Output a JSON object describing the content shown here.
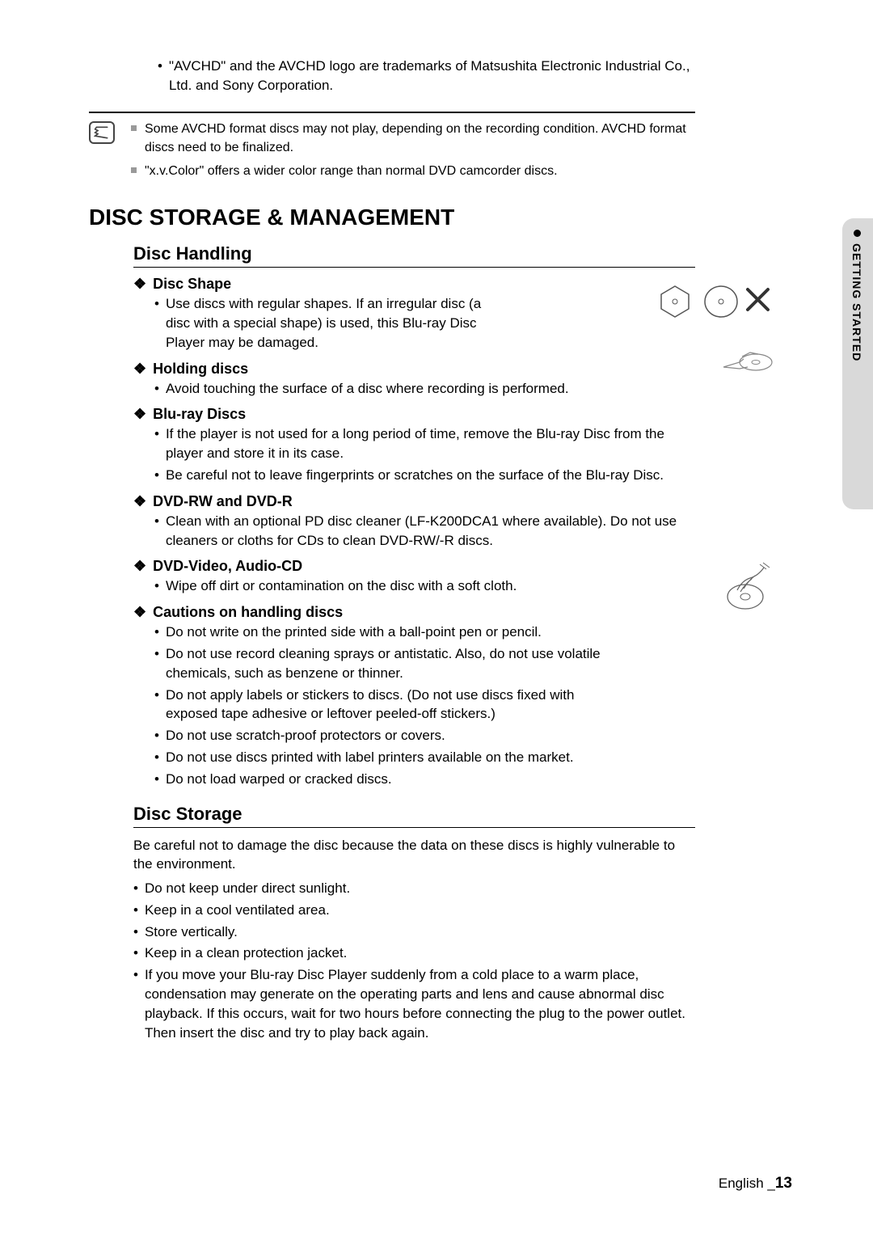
{
  "top_bullet": "\"AVCHD\" and the AVCHD logo are trademarks of Matsushita Electronic Industrial Co., Ltd. and Sony Corporation.",
  "notes": [
    "Some AVCHD format discs may not play, depending on the recording condition. AVCHD format discs need to be finalized.",
    "\"x.v.Color\" offers a wider color range than normal DVD camcorder discs."
  ],
  "main_heading": "DISC STORAGE & MANAGEMENT",
  "section1": {
    "title": "Disc Handling",
    "groups": [
      {
        "head": "Disc Shape",
        "items": [
          "Use discs with regular shapes. If an irregular disc (a disc with a special shape) is used, this Blu-ray Disc Player may be damaged."
        ]
      },
      {
        "head": "Holding discs",
        "items": [
          "Avoid touching the surface of a disc where recording is performed."
        ]
      },
      {
        "head": "Blu-ray Discs",
        "items": [
          "If the player is not used for a long period of time, remove the Blu-ray Disc from the player and store it in its case.",
          "Be careful not to leave fingerprints or scratches on the surface of the Blu-ray Disc."
        ]
      },
      {
        "head": "DVD-RW and DVD-R",
        "items": [
          "Clean with an optional PD disc cleaner (LF-K200DCA1 where available). Do not use cleaners or cloths for CDs to clean DVD-RW/-R discs."
        ]
      },
      {
        "head": "DVD-Video, Audio-CD",
        "items": [
          "Wipe off dirt or contamination on the disc with a soft cloth."
        ]
      },
      {
        "head": "Cautions on handling discs",
        "items": [
          "Do not write on the printed side with a ball-point pen or pencil.",
          "Do not use record cleaning sprays or antistatic. Also, do not use volatile chemicals, such as benzene or thinner.",
          "Do not apply labels or stickers to discs. (Do not use discs fixed with exposed tape adhesive or leftover peeled-off stickers.)",
          "Do not use scratch-proof protectors or covers.",
          "Do not use discs printed with label printers available on the market.",
          "Do not load warped or cracked discs."
        ]
      }
    ]
  },
  "section2": {
    "title": "Disc Storage",
    "intro": "Be careful not to damage the disc because the data on these discs is highly vulnerable to the environment.",
    "items": [
      "Do not keep under direct sunlight.",
      "Keep in a cool ventilated area.",
      "Store vertically.",
      "Keep in a clean protection jacket.",
      "If you move your Blu-ray Disc Player suddenly from a cold place to a warm place, condensation may generate on the operating parts and lens and cause abnormal disc playback. If this occurs, wait for two hours before connecting the plug to the power outlet. Then insert the disc and try to play back again."
    ]
  },
  "side_tab": "GETTING STARTED",
  "footer_lang": "English",
  "footer_page": "13",
  "colors": {
    "page_bg": "#ffffff",
    "text": "#000000",
    "tab_bg": "#d9d9d9",
    "note_square": "#999999"
  }
}
